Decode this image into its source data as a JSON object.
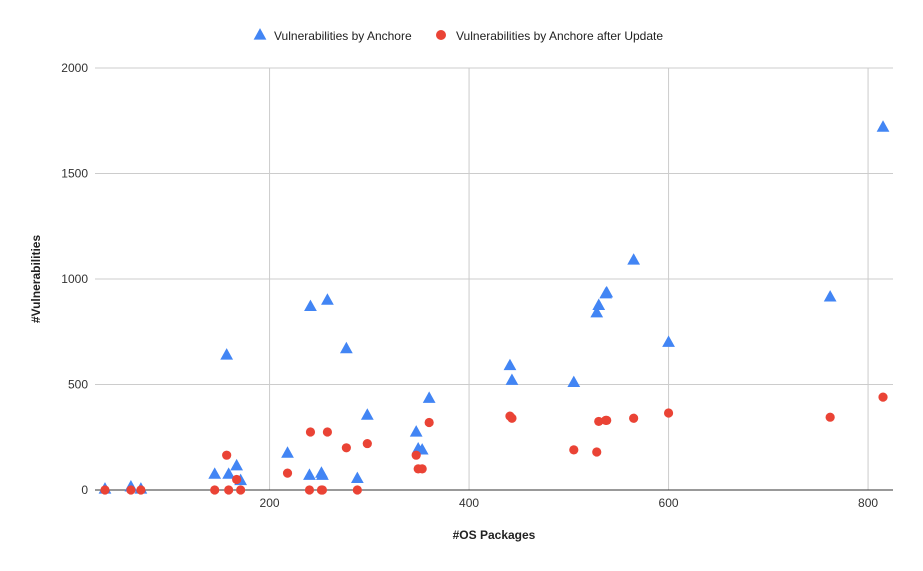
{
  "chart_data": {
    "type": "scatter",
    "xlabel": "#OS Packages",
    "ylabel": "#Vulnerabilities",
    "xlim": [
      25,
      825
    ],
    "ylim": [
      0,
      2000
    ],
    "x_ticks": [
      200,
      400,
      600,
      800
    ],
    "y_ticks": [
      0,
      500,
      1000,
      1500,
      2000
    ],
    "grid": "on",
    "legend_position": "top",
    "series": [
      {
        "name": "Vulnerabilities by Anchore",
        "marker": "triangle",
        "color": "#4285f4",
        "x": [
          35,
          61,
          71,
          145,
          157,
          159,
          167,
          171,
          218,
          240,
          241,
          252,
          253,
          258,
          277,
          288,
          298,
          347,
          349,
          353,
          360,
          441,
          443,
          505,
          528,
          530,
          537,
          538,
          565,
          600,
          762,
          815
        ],
        "y": [
          5,
          15,
          5,
          75,
          640,
          75,
          115,
          45,
          175,
          70,
          870,
          80,
          70,
          900,
          670,
          55,
          355,
          275,
          195,
          190,
          435,
          590,
          520,
          510,
          840,
          875,
          930,
          935,
          1090,
          700,
          915,
          1720
        ]
      },
      {
        "name": "Vulnerabilities by Anchore after Update",
        "marker": "circle",
        "color": "#ea4335",
        "x": [
          35,
          61,
          71,
          145,
          157,
          159,
          167,
          171,
          218,
          240,
          241,
          252,
          253,
          258,
          277,
          288,
          298,
          347,
          349,
          353,
          360,
          441,
          443,
          505,
          528,
          530,
          537,
          538,
          565,
          600,
          762,
          815
        ],
        "y": [
          0,
          0,
          0,
          0,
          165,
          0,
          50,
          0,
          80,
          0,
          275,
          0,
          0,
          275,
          200,
          0,
          220,
          165,
          100,
          100,
          320,
          350,
          340,
          190,
          180,
          325,
          330,
          330,
          340,
          365,
          345,
          440
        ]
      }
    ]
  }
}
